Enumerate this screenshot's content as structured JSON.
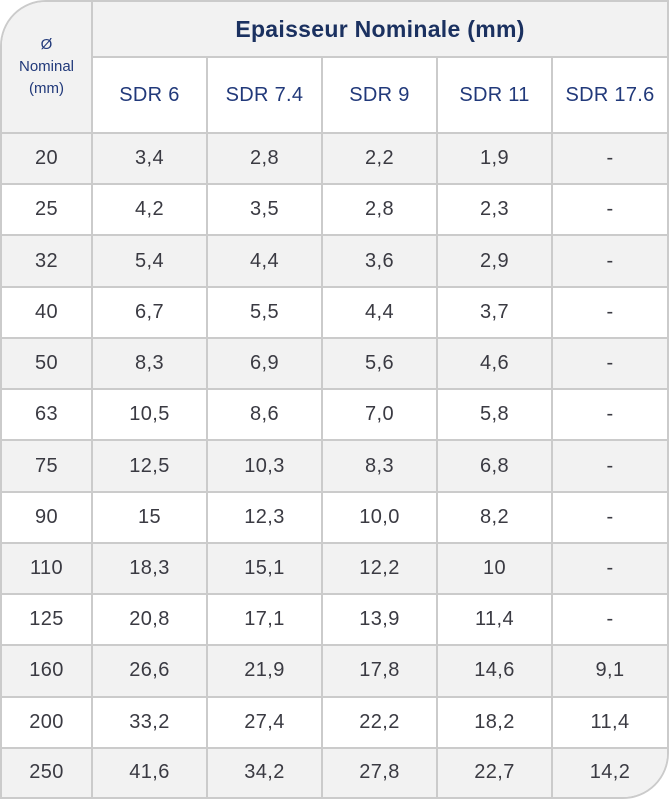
{
  "colors": {
    "title_text": "#1b3160",
    "header_text": "#21397a",
    "value_text": "#3a3a42",
    "grid_border": "#cbcbcb",
    "stripe_bg": "#f2f2f2",
    "cell_bg": "#ffffff"
  },
  "chart_data": {
    "type": "table",
    "title": "Epaisseur Nominale (mm)",
    "corner_header_label": "Ø Nominal (mm)",
    "corner_header_lines": [
      "Ø",
      "Nominal",
      "(mm)"
    ],
    "columns": [
      "SDR 6",
      "SDR 7.4",
      "SDR 9",
      "SDR 11",
      "SDR 17.6"
    ],
    "rows": [
      {
        "diameter": "20",
        "values": [
          "3,4",
          "2,8",
          "2,2",
          "1,9",
          "-"
        ]
      },
      {
        "diameter": "25",
        "values": [
          "4,2",
          "3,5",
          "2,8",
          "2,3",
          "-"
        ]
      },
      {
        "diameter": "32",
        "values": [
          "5,4",
          "4,4",
          "3,6",
          "2,9",
          "-"
        ]
      },
      {
        "diameter": "40",
        "values": [
          "6,7",
          "5,5",
          "4,4",
          "3,7",
          "-"
        ]
      },
      {
        "diameter": "50",
        "values": [
          "8,3",
          "6,9",
          "5,6",
          "4,6",
          "-"
        ]
      },
      {
        "diameter": "63",
        "values": [
          "10,5",
          "8,6",
          "7,0",
          "5,8",
          "-"
        ]
      },
      {
        "diameter": "75",
        "values": [
          "12,5",
          "10,3",
          "8,3",
          "6,8",
          "-"
        ]
      },
      {
        "diameter": "90",
        "values": [
          "15",
          "12,3",
          "10,0",
          "8,2",
          "-"
        ]
      },
      {
        "diameter": "110",
        "values": [
          "18,3",
          "15,1",
          "12,2",
          "10",
          "-"
        ]
      },
      {
        "diameter": "125",
        "values": [
          "20,8",
          "17,1",
          "13,9",
          "11,4",
          "-"
        ]
      },
      {
        "diameter": "160",
        "values": [
          "26,6",
          "21,9",
          "17,8",
          "14,6",
          "9,1"
        ]
      },
      {
        "diameter": "200",
        "values": [
          "33,2",
          "27,4",
          "22,2",
          "18,2",
          "11,4"
        ]
      },
      {
        "diameter": "250",
        "values": [
          "41,6",
          "34,2",
          "27,8",
          "22,7",
          "14,2"
        ]
      }
    ]
  }
}
